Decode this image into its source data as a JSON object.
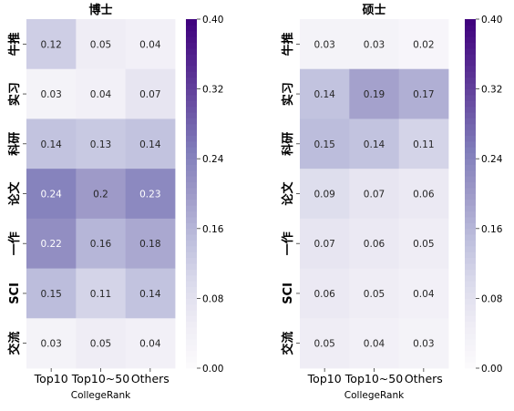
{
  "chart_data": [
    {
      "type": "heatmap",
      "title": "博士",
      "xlabel": "CollegeRank",
      "ylabel": "",
      "x_categories": [
        "Top10",
        "Top10~50",
        "Others"
      ],
      "y_categories": [
        "牛推",
        "实习",
        "科研",
        "论文",
        "一作",
        "SCI",
        "交流"
      ],
      "values": [
        [
          0.12,
          0.05,
          0.04
        ],
        [
          0.03,
          0.04,
          0.07
        ],
        [
          0.14,
          0.13,
          0.14
        ],
        [
          0.24,
          0.2,
          0.23
        ],
        [
          0.22,
          0.16,
          0.18
        ],
        [
          0.15,
          0.11,
          0.14
        ],
        [
          0.03,
          0.05,
          0.04
        ]
      ],
      "vmin": 0.0,
      "vmax": 0.4,
      "colorbar_ticks": [
        "0.00",
        "0.08",
        "0.16",
        "0.24",
        "0.32",
        "0.40"
      ],
      "colormap": "Purples"
    },
    {
      "type": "heatmap",
      "title": "硕士",
      "xlabel": "CollegeRank",
      "ylabel": "",
      "x_categories": [
        "Top10",
        "Top10~50",
        "Others"
      ],
      "y_categories": [
        "牛推",
        "实习",
        "科研",
        "论文",
        "一作",
        "SCI",
        "交流"
      ],
      "values": [
        [
          0.03,
          0.03,
          0.02
        ],
        [
          0.14,
          0.19,
          0.17
        ],
        [
          0.15,
          0.14,
          0.11
        ],
        [
          0.09,
          0.07,
          0.06
        ],
        [
          0.07,
          0.06,
          0.05
        ],
        [
          0.06,
          0.05,
          0.04
        ],
        [
          0.05,
          0.04,
          0.03
        ]
      ],
      "vmin": 0.0,
      "vmax": 0.4,
      "colorbar_ticks": [
        "0.00",
        "0.08",
        "0.16",
        "0.24",
        "0.32",
        "0.40"
      ],
      "colormap": "Purples"
    }
  ]
}
